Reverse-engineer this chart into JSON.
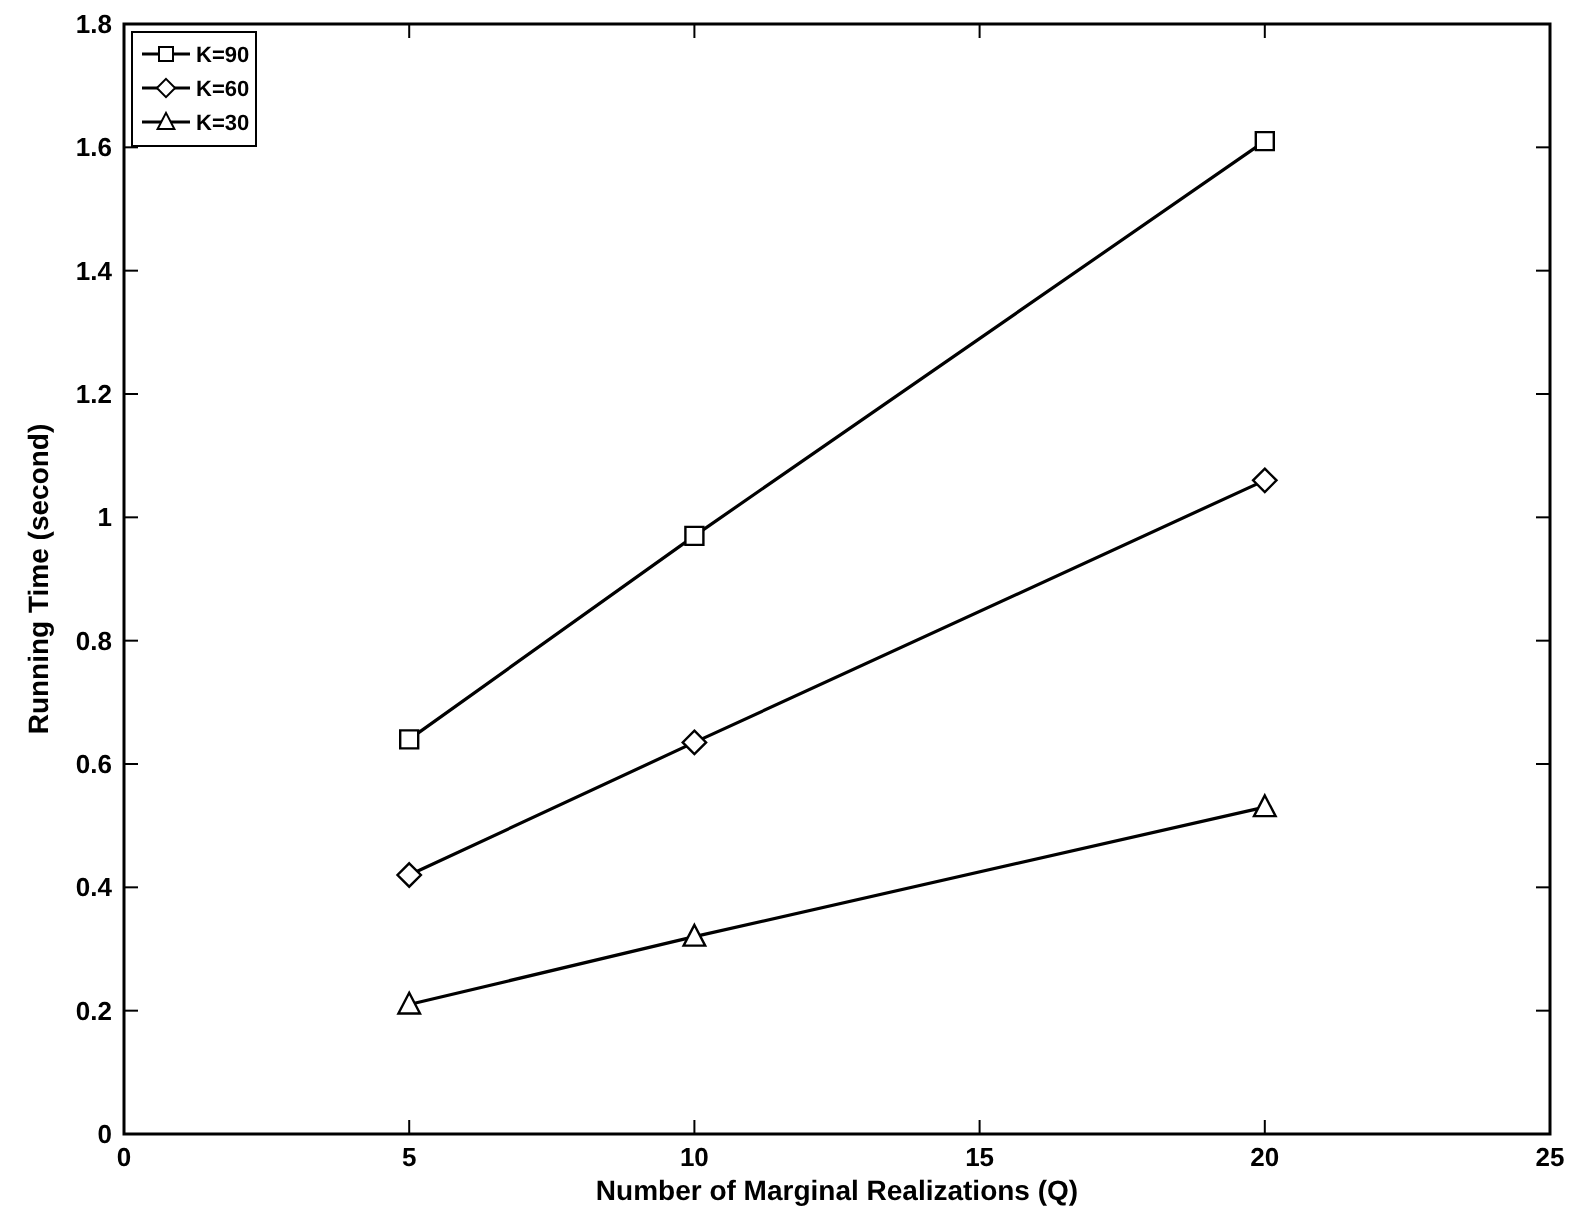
{
  "chart_data": {
    "type": "line",
    "xlabel": "Number of Marginal Realizations (Q)",
    "ylabel": "Running Time (second)",
    "x": [
      5,
      10,
      20
    ],
    "series": [
      {
        "name": "K=90",
        "color": "#000000",
        "values": [
          0.64,
          0.97,
          1.61
        ],
        "marker": "square"
      },
      {
        "name": "K=60",
        "color": "#000000",
        "values": [
          0.42,
          0.635,
          1.06
        ],
        "marker": "diamond"
      },
      {
        "name": "K=30",
        "color": "#000000",
        "values": [
          0.21,
          0.32,
          0.53
        ],
        "marker": "triangle"
      }
    ],
    "xlim": [
      0,
      25
    ],
    "xticks": [
      0,
      5,
      10,
      15,
      20,
      25
    ],
    "ylim": [
      0,
      1.8
    ],
    "yticks": [
      0,
      0.2,
      0.4,
      0.6,
      0.8,
      1,
      1.2,
      1.4,
      1.6,
      1.8
    ],
    "grid": false,
    "legend": "top left",
    "line_style": "solid"
  }
}
